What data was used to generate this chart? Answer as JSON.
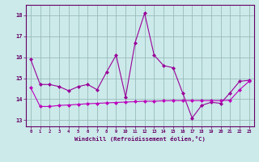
{
  "x": [
    0,
    1,
    2,
    3,
    4,
    5,
    6,
    7,
    8,
    9,
    10,
    11,
    12,
    13,
    14,
    15,
    16,
    17,
    18,
    19,
    20,
    21,
    22,
    23
  ],
  "line1_y": [
    15.9,
    14.7,
    14.7,
    14.6,
    14.4,
    14.6,
    14.7,
    14.45,
    15.3,
    16.1,
    14.1,
    16.7,
    18.1,
    16.1,
    15.6,
    15.5,
    14.3,
    13.1,
    13.7,
    13.85,
    13.8,
    14.3,
    14.85,
    14.9
  ],
  "line2_y": [
    14.55,
    13.65,
    13.65,
    13.7,
    13.72,
    13.75,
    13.78,
    13.8,
    13.82,
    13.84,
    13.86,
    13.88,
    13.9,
    13.9,
    13.92,
    13.93,
    13.93,
    13.93,
    13.93,
    13.93,
    13.93,
    13.95,
    14.45,
    14.85
  ],
  "line1_color": "#990099",
  "line2_color": "#bb00bb",
  "bg_color": "#cceaea",
  "grid_color": "#99bbbb",
  "xlabel": "Windchill (Refroidissement éolien,°C)",
  "ylabel_vals": [
    13,
    14,
    15,
    16,
    17,
    18
  ],
  "ylim": [
    12.7,
    18.5
  ],
  "xlim": [
    -0.5,
    23.5
  ],
  "tick_color": "#660066",
  "label_color": "#660066",
  "spine_color": "#660066"
}
